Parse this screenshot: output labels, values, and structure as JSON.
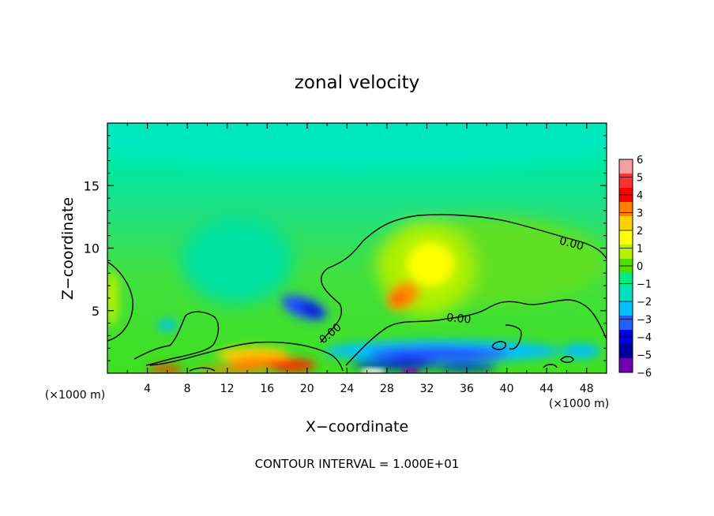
{
  "chart_data": {
    "type": "heatmap",
    "title": "zonal velocity",
    "xlabel": "X−coordinate",
    "ylabel": "Z−coordinate",
    "x_unit_left": "(×1000 m)",
    "x_unit_right": "(×1000 m)",
    "footer": "CONTOUR INTERVAL = 1.000E+01",
    "xlim": [
      0,
      50
    ],
    "ylim": [
      0,
      20
    ],
    "x_ticks": [
      4,
      8,
      12,
      16,
      20,
      24,
      28,
      32,
      36,
      40,
      44,
      48
    ],
    "y_ticks": [
      5,
      10,
      15
    ],
    "colorbar": {
      "ticks": [
        6,
        5,
        4,
        3,
        2,
        1,
        0,
        -1,
        -2,
        -3,
        -4,
        -5,
        -6
      ],
      "labels": [
        "6",
        "5",
        "4",
        "3",
        "2",
        "1",
        "0",
        "−1",
        "−2",
        "−3",
        "−4",
        "−5",
        "−6"
      ],
      "colors": [
        "#f5a0a0",
        "#ff3030",
        "#ff0000",
        "#ff8000",
        "#ffd000",
        "#ffff00",
        "#b8f000",
        "#50e000",
        "#00ee80",
        "#00e0c0",
        "#00c0ff",
        "#2060ff",
        "#0000e0",
        "#0000a0",
        "#7000b0"
      ]
    },
    "contour_labels": [
      {
        "text": "0.00",
        "x": 46.5,
        "y": 10.4
      },
      {
        "text": "0.00",
        "x": 35.2,
        "y": 4.4
      },
      {
        "text": "0.00",
        "x": 22.3,
        "y": 3.2
      }
    ],
    "features": [
      {
        "kind": "positive-max",
        "x": 29.5,
        "y": 6.5,
        "value": 3
      },
      {
        "kind": "positive-max",
        "x": 30.5,
        "y": 9.0,
        "value": 2
      },
      {
        "kind": "negative-min",
        "x": 19.0,
        "y": 5.2,
        "value": -4
      },
      {
        "kind": "negative-min",
        "x": 33.0,
        "y": 1.5,
        "value": -4
      },
      {
        "kind": "positive-max",
        "x": 18.5,
        "y": 0.6,
        "value": 5
      }
    ]
  }
}
